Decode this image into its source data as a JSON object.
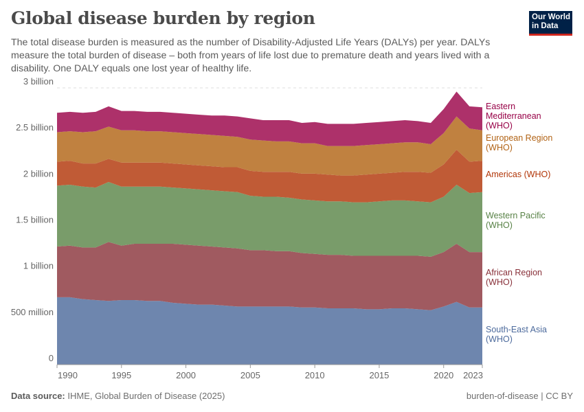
{
  "header": {
    "title": "Global disease burden by region",
    "subtitle": "The total disease burden is measured as the number of Disability-Adjusted Life Years (DALYs) per year. DALYs measure the total burden of disease – both from years of life lost due to premature death and years lived with a disability. One DALY equals one lost year of healthy life.",
    "logo_text": "Our World in Data"
  },
  "footer": {
    "source_label": "Data source:",
    "source": "IHME, Global Burden of Disease (2025)",
    "right": "burden-of-disease | CC BY"
  },
  "chart_data": {
    "type": "area",
    "stacked": true,
    "title": "Global disease burden by region",
    "xlabel": "",
    "ylabel": "",
    "xlim": [
      1990,
      2023
    ],
    "ylim": [
      0,
      3000000000
    ],
    "x_ticks": [
      1990,
      1995,
      2000,
      2005,
      2010,
      2015,
      2020,
      2023
    ],
    "y_ticks": [
      {
        "v": 0,
        "label": "0"
      },
      {
        "v": 500000000,
        "label": "500 million"
      },
      {
        "v": 1000000000,
        "label": "1 billion"
      },
      {
        "v": 1500000000,
        "label": "1.5 billion"
      },
      {
        "v": 2000000000,
        "label": "2 billion"
      },
      {
        "v": 2500000000,
        "label": "2.5 billion"
      },
      {
        "v": 3000000000,
        "label": "3 billion"
      }
    ],
    "grid": "horizontal dashed",
    "legend": "right (inline labels)",
    "unit_scale": "billions",
    "x": [
      1990,
      1991,
      1992,
      1993,
      1994,
      1995,
      1996,
      1997,
      1998,
      1999,
      2000,
      2001,
      2002,
      2003,
      2004,
      2005,
      2006,
      2007,
      2008,
      2009,
      2010,
      2011,
      2012,
      2013,
      2014,
      2015,
      2016,
      2017,
      2018,
      2019,
      2020,
      2021,
      2022,
      2023
    ],
    "series": [
      {
        "name": "South-East Asia (WHO)",
        "color": "#6e86ae",
        "label_color": "#4c6a9c",
        "values": [
          0.73,
          0.73,
          0.71,
          0.7,
          0.69,
          0.7,
          0.7,
          0.69,
          0.69,
          0.67,
          0.66,
          0.65,
          0.65,
          0.64,
          0.63,
          0.63,
          0.63,
          0.63,
          0.63,
          0.62,
          0.62,
          0.61,
          0.61,
          0.61,
          0.6,
          0.6,
          0.61,
          0.61,
          0.6,
          0.59,
          0.63,
          0.68,
          0.62,
          0.62
        ]
      },
      {
        "name": "African Region (WHO)",
        "color": "#a05a60",
        "label_color": "#883039",
        "values": [
          0.55,
          0.56,
          0.56,
          0.57,
          0.64,
          0.59,
          0.61,
          0.62,
          0.62,
          0.64,
          0.64,
          0.64,
          0.63,
          0.63,
          0.63,
          0.61,
          0.61,
          0.6,
          0.6,
          0.59,
          0.58,
          0.58,
          0.58,
          0.57,
          0.58,
          0.58,
          0.57,
          0.57,
          0.58,
          0.58,
          0.59,
          0.63,
          0.6,
          0.6
        ]
      },
      {
        "name": "Western Pacific (WHO)",
        "color": "#799c6a",
        "label_color": "#578145",
        "values": [
          0.66,
          0.66,
          0.66,
          0.65,
          0.65,
          0.64,
          0.62,
          0.62,
          0.62,
          0.61,
          0.61,
          0.61,
          0.61,
          0.61,
          0.61,
          0.59,
          0.58,
          0.59,
          0.58,
          0.58,
          0.58,
          0.58,
          0.58,
          0.58,
          0.58,
          0.59,
          0.6,
          0.6,
          0.59,
          0.59,
          0.6,
          0.64,
          0.64,
          0.65
        ]
      },
      {
        "name": "Americas (WHO)",
        "color": "#c05b36",
        "label_color": "#b13507",
        "values": [
          0.26,
          0.26,
          0.25,
          0.26,
          0.25,
          0.26,
          0.26,
          0.26,
          0.26,
          0.26,
          0.26,
          0.26,
          0.26,
          0.26,
          0.27,
          0.27,
          0.27,
          0.27,
          0.28,
          0.28,
          0.29,
          0.29,
          0.28,
          0.29,
          0.3,
          0.3,
          0.3,
          0.31,
          0.32,
          0.32,
          0.35,
          0.38,
          0.34,
          0.34
        ]
      },
      {
        "name": "European Region (WHO)",
        "color": "#c08140",
        "label_color": "#b16214",
        "values": [
          0.32,
          0.32,
          0.34,
          0.35,
          0.35,
          0.35,
          0.35,
          0.34,
          0.34,
          0.34,
          0.34,
          0.34,
          0.34,
          0.34,
          0.33,
          0.34,
          0.34,
          0.33,
          0.33,
          0.33,
          0.33,
          0.31,
          0.32,
          0.32,
          0.32,
          0.32,
          0.32,
          0.32,
          0.32,
          0.31,
          0.34,
          0.36,
          0.36,
          0.33
        ]
      },
      {
        "name": "Eastern Mediterranean (WHO)",
        "color": "#ad316a",
        "label_color": "#970046",
        "values": [
          0.21,
          0.21,
          0.21,
          0.21,
          0.22,
          0.21,
          0.21,
          0.21,
          0.21,
          0.21,
          0.21,
          0.21,
          0.21,
          0.22,
          0.22,
          0.23,
          0.22,
          0.23,
          0.23,
          0.22,
          0.23,
          0.24,
          0.24,
          0.24,
          0.24,
          0.24,
          0.24,
          0.24,
          0.23,
          0.23,
          0.26,
          0.27,
          0.24,
          0.25
        ]
      }
    ],
    "label_lines": [
      [
        "South-East Asia",
        "(WHO)"
      ],
      [
        "African Region",
        "(WHO)"
      ],
      [
        "Western Pacific",
        "(WHO)"
      ],
      [
        "Americas (WHO)"
      ],
      [
        "European Region",
        "(WHO)"
      ],
      [
        "Eastern",
        "Mediterranean",
        "(WHO)"
      ]
    ]
  }
}
